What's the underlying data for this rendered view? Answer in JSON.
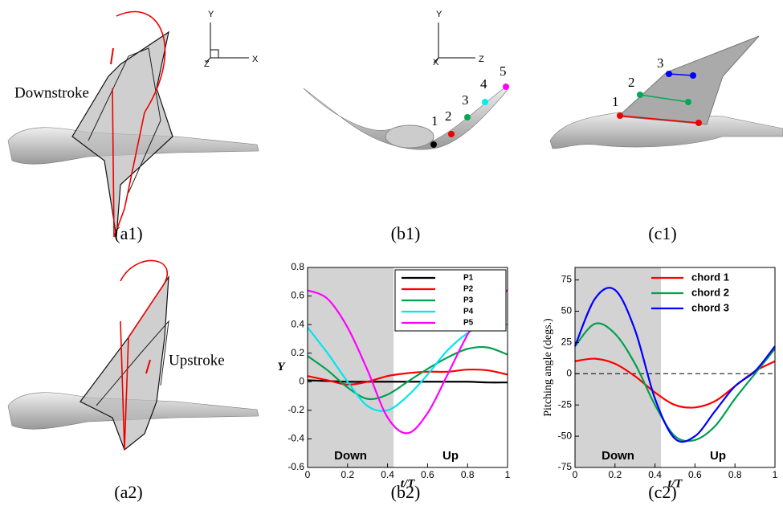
{
  "panels": {
    "a1": "(a1)",
    "b1": "(b1)",
    "c1": "(c1)",
    "a2": "(a2)",
    "b2": "(b2)",
    "c2": "(c2)"
  },
  "annotations": {
    "downstroke": "Downstroke",
    "upstroke": "Upstroke"
  },
  "axes_a1": {
    "y": "Y",
    "x": "X",
    "z": "Z"
  },
  "axes_b1": {
    "y": "Y",
    "x": "X",
    "z": "Z"
  },
  "points_b1": [
    "1",
    "2",
    "3",
    "4",
    "5"
  ],
  "points_c1": [
    "1",
    "2",
    "3"
  ],
  "chart_data": [
    {
      "type": "line",
      "xlabel": "t/T",
      "ylabel": "Y",
      "x": [
        0,
        0.1,
        0.2,
        0.3,
        0.4,
        0.5,
        0.6,
        0.7,
        0.8,
        0.9,
        1
      ],
      "series": [
        {
          "name": "P1",
          "color": "#000000",
          "values": [
            0.01,
            0.005,
            0,
            0,
            0,
            0,
            0,
            0,
            0,
            -0.005,
            -0.005
          ]
        },
        {
          "name": "P2",
          "color": "#ff0000",
          "values": [
            0.04,
            0.01,
            -0.02,
            0,
            0.04,
            0.06,
            0.07,
            0.07,
            0.085,
            0.08,
            0.05
          ]
        },
        {
          "name": "P3",
          "color": "#00a050",
          "values": [
            0.18,
            0.08,
            -0.04,
            -0.12,
            -0.09,
            0,
            0.09,
            0.17,
            0.23,
            0.24,
            0.19
          ]
        },
        {
          "name": "P4",
          "color": "#00e5ee",
          "values": [
            0.38,
            0.2,
            0,
            -0.17,
            -0.2,
            -0.1,
            0.05,
            0.22,
            0.34,
            0.41,
            0.4
          ]
        },
        {
          "name": "P5",
          "color": "#ff00ff",
          "values": [
            0.64,
            0.58,
            0.38,
            0.08,
            -0.25,
            -0.36,
            -0.22,
            0.05,
            0.33,
            0.55,
            0.64
          ]
        }
      ],
      "xlim": [
        0,
        1
      ],
      "xticks": [
        0,
        0.2,
        0.4,
        0.6,
        0.8,
        1
      ],
      "ylim": [
        -0.6,
        0.8
      ],
      "yticks": [
        -0.6,
        -0.4,
        -0.2,
        0,
        0.2,
        0.4,
        0.6,
        0.8
      ],
      "shade": [
        0,
        0.43
      ],
      "annotations": [
        "Down",
        "Up"
      ],
      "legend": "upper-right",
      "legend_box": true
    },
    {
      "type": "line",
      "xlabel": "t/T",
      "ylabel": "Pitching angle (degs.)",
      "x": [
        0,
        0.1,
        0.2,
        0.3,
        0.4,
        0.5,
        0.6,
        0.7,
        0.8,
        0.9,
        1
      ],
      "series": [
        {
          "name": "chord 1",
          "color": "#ff0000",
          "values": [
            10,
            12,
            8,
            -2,
            -15,
            -25,
            -27,
            -22,
            -10,
            2,
            10
          ]
        },
        {
          "name": "chord 2",
          "color": "#00a050",
          "values": [
            22,
            40,
            32,
            8,
            -25,
            -50,
            -53,
            -42,
            -20,
            0,
            20
          ]
        },
        {
          "name": "chord 3",
          "color": "#0000ff",
          "values": [
            22,
            60,
            67,
            35,
            -20,
            -52,
            -50,
            -30,
            -10,
            2,
            22
          ]
        }
      ],
      "xlim": [
        0,
        1
      ],
      "xticks": [
        0,
        0.2,
        0.4,
        0.6,
        0.8,
        1
      ],
      "ylim": [
        -75,
        85
      ],
      "yticks": [
        -75,
        -50,
        -25,
        0,
        25,
        50,
        75
      ],
      "shade": [
        0,
        0.43
      ],
      "hline": 0,
      "annotations": [
        "Down",
        "Up"
      ],
      "legend": "upper-right",
      "legend_box": false
    }
  ]
}
